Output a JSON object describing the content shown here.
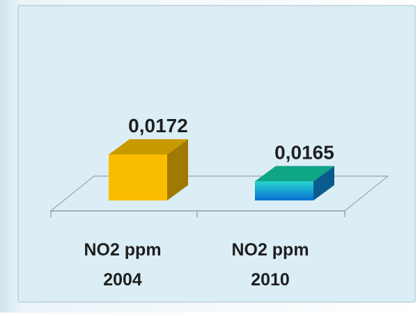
{
  "chart_data": {
    "type": "bar",
    "categories": [
      "NO2 ppm 2004",
      "NO2  ppm 2010"
    ],
    "category_lines": [
      [
        "NO2 ppm",
        "2004"
      ],
      [
        "NO2  ppm",
        "2010"
      ]
    ],
    "values": [
      0.0172,
      0.0165
    ],
    "value_labels": [
      "0,0172",
      "0,0165"
    ],
    "title": "",
    "xlabel": "",
    "ylabel": "",
    "grid": false,
    "legend": "none",
    "style": "3d-column",
    "colors": {
      "bar_2004_front": "#fbbd00",
      "bar_2004_side": "#a07a00",
      "bar_2004_top": "#c99a00",
      "bar_2010_front_top": "#27d6cf",
      "bar_2010_front_bottom": "#0a6fd6",
      "bar_2010_side": "#0b5c8e",
      "bar_2010_top": "#0fa587",
      "plot_background": "#dbeef6",
      "label_text": "#1f1f1f"
    }
  }
}
